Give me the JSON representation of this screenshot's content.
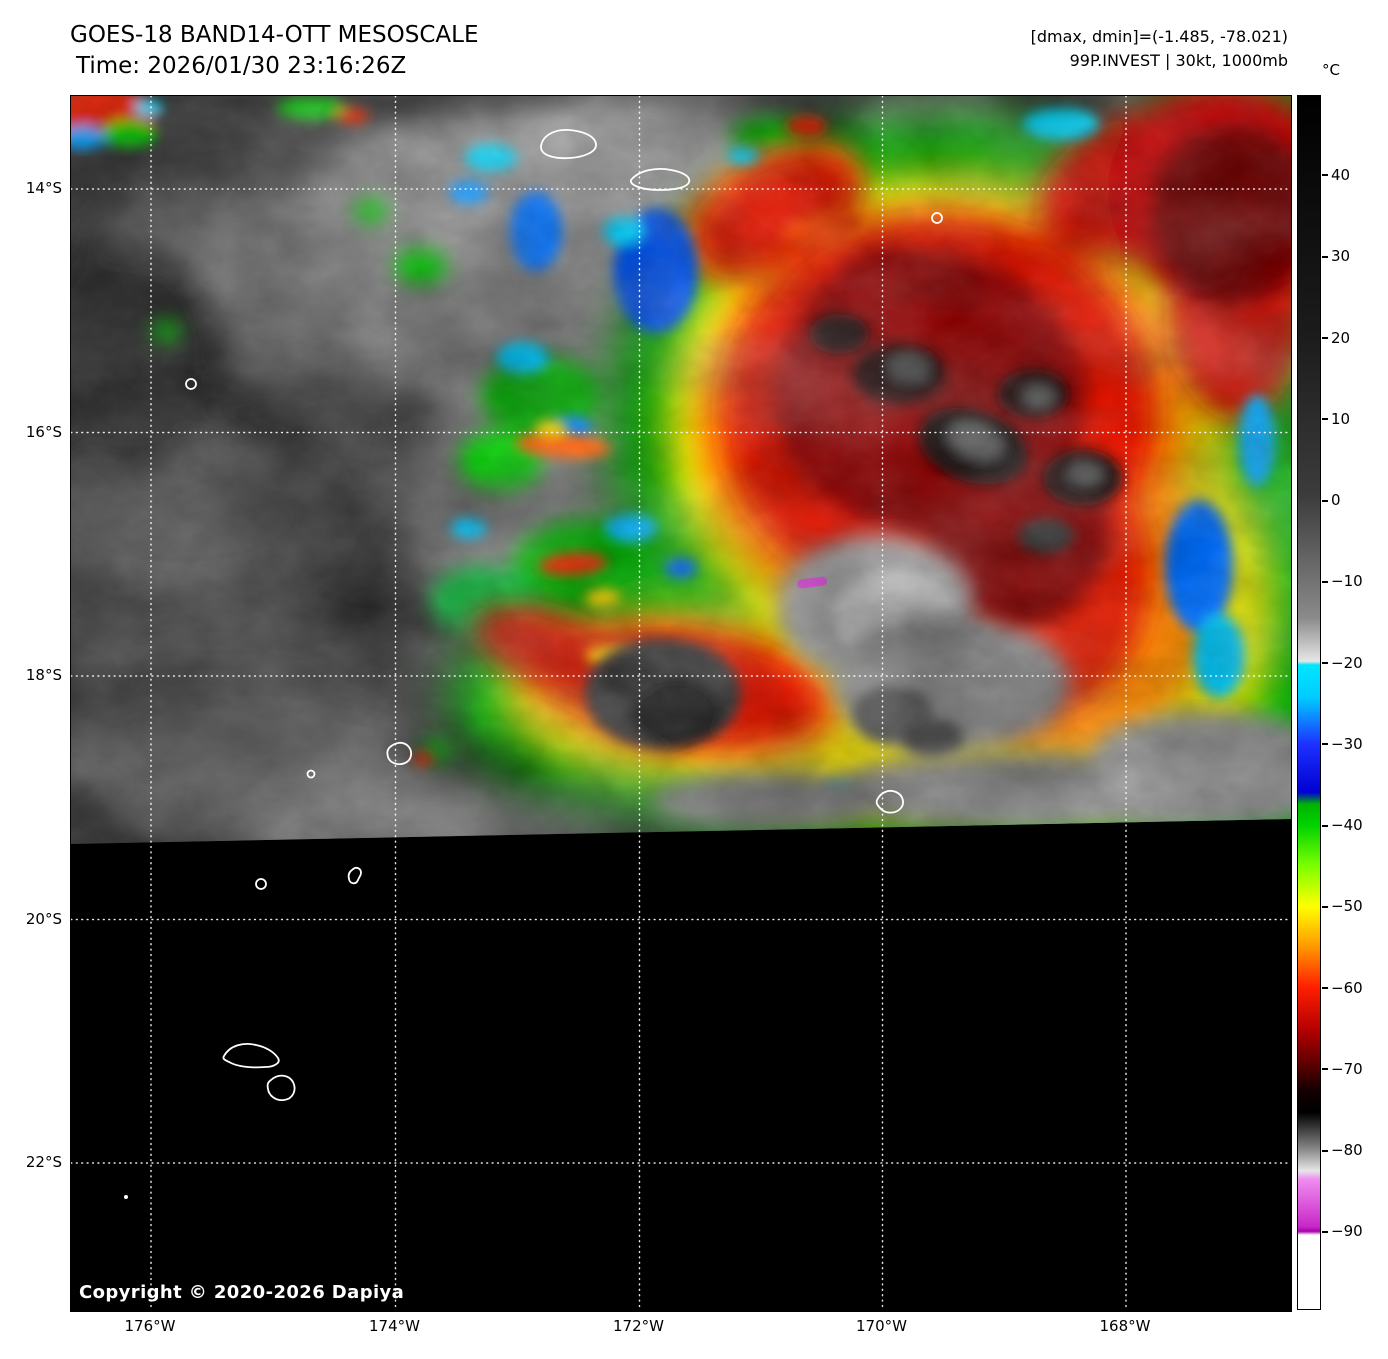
{
  "header": {
    "title": "GOES-18 BAND14-OTT MESOSCALE",
    "time_line": "Time: 2026/01/30 23:16:26Z",
    "dmax_dmin": "[dmax, dmin]=(-1.485, -78.021)",
    "storm_info": "99P.INVEST | 30kt, 1000mb"
  },
  "colorbar": {
    "unit": "°C",
    "tick_values": [
      40,
      30,
      20,
      10,
      0,
      -10,
      -20,
      -30,
      -40,
      -50,
      -60,
      -70,
      -80,
      -90
    ],
    "tick_labels": [
      "40",
      "30",
      "20",
      "10",
      "0",
      "−10",
      "−20",
      "−30",
      "−40",
      "−50",
      "−60",
      "−70",
      "−80",
      "−90"
    ],
    "band_colors": {
      "warm_grayscale_start": "#000000",
      "warm_grayscale_end": "#e6e6e6",
      "cyan": "#00e6ff",
      "blue": "#0000d2",
      "green": "#00d200",
      "yellow": "#ffff00",
      "orange": "#ff9600",
      "red": "#ff1e00",
      "dark_red": "#500000",
      "cold_black": "#000000",
      "cold_gray": "#c8c8c8",
      "magenta": "#c828c8",
      "below_minus90": "#ffffff"
    }
  },
  "map": {
    "lat_labels": [
      "14°S",
      "16°S",
      "18°S",
      "20°S",
      "22°S"
    ],
    "lon_labels": [
      "176°W",
      "174°W",
      "172°W",
      "170°W",
      "168°W"
    ],
    "copyright": "Copyright © 2020-2026 Dapiya"
  }
}
